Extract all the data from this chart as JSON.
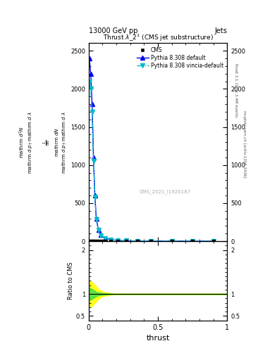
{
  "title_top": "13000 GeV pp",
  "title_right": "Jets",
  "plot_title": "Thrust $\\lambda\\_2^1$ (CMS jet substructure)",
  "xlabel": "thrust",
  "ylabel_ratio": "Ratio to CMS",
  "right_label_top": "Rivet 3.1.10, ≥ 3.4M events",
  "right_label_bottom": "mcplots.cern.ch [arXiv:1306.3436]",
  "watermark": "CMS_2021_I1920187",
  "cms_x": [
    0.005,
    0.015,
    0.025,
    0.035,
    0.045,
    0.055,
    0.07,
    0.09,
    0.12,
    0.16,
    0.21,
    0.27,
    0.35,
    0.45,
    0.6,
    0.75,
    0.9
  ],
  "cms_y": [
    0,
    0,
    0,
    0,
    0,
    0,
    0,
    0,
    0,
    0,
    0,
    0,
    0,
    0,
    0,
    0,
    0
  ],
  "pythia_x": [
    0.005,
    0.015,
    0.025,
    0.035,
    0.045,
    0.055,
    0.07,
    0.09,
    0.12,
    0.16,
    0.21,
    0.27,
    0.35,
    0.45,
    0.6,
    0.75,
    0.9
  ],
  "pythia_default_y": [
    2400,
    2200,
    1800,
    1100,
    600,
    300,
    150,
    80,
    40,
    20,
    10,
    5,
    3,
    2,
    1,
    0.5,
    0.2
  ],
  "pythia_vincia_y": [
    2100,
    2000,
    1700,
    1050,
    580,
    290,
    145,
    78,
    38,
    19,
    9,
    5,
    3,
    2,
    1,
    0.5,
    0.2
  ],
  "color_pythia_default": "#0000ee",
  "color_pythia_vincia": "#00bbcc",
  "color_cms": "#000000",
  "ylim_main": [
    0,
    2600
  ],
  "ylim_ratio": [
    0.4,
    2.2
  ],
  "xlim": [
    0.0,
    1.0
  ],
  "yticks_main": [
    0,
    500,
    1000,
    1500,
    2000,
    2500
  ],
  "ytick_labels_main": [
    "0",
    "500",
    "1000",
    "1500",
    "2000",
    "2500"
  ],
  "xticks": [
    0,
    0.5,
    1.0
  ],
  "xtick_labels": [
    "0",
    "0.5",
    "1"
  ],
  "yticks_ratio": [
    0.5,
    1.0,
    2.0
  ],
  "ytick_labels_ratio": [
    "0.5",
    "1",
    "2"
  ]
}
